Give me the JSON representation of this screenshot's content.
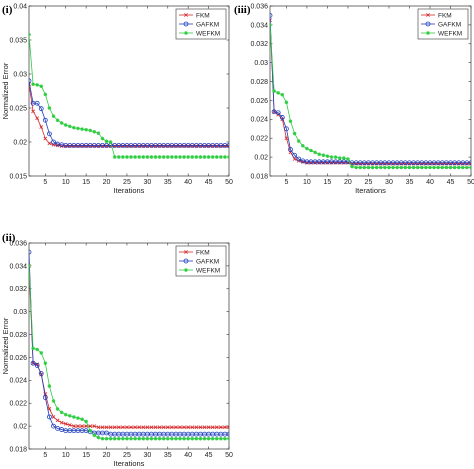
{
  "chart_data": [
    {
      "type": "line",
      "panel_label": "(i)",
      "xlabel": "Iterations",
      "ylabel": "Normalized Error",
      "xlim": [
        1,
        50
      ],
      "ylim": [
        0.015,
        0.04
      ],
      "xticks": [
        5,
        10,
        15,
        20,
        25,
        30,
        35,
        40,
        45,
        50
      ],
      "yticks": [
        0.015,
        0.02,
        0.025,
        0.03,
        0.035,
        0.04
      ],
      "ytick_labels": [
        "0.015",
        "0.02",
        "0.025",
        "0.03",
        "0.035",
        "0.04"
      ],
      "grid": false,
      "legend": "top-right",
      "series": [
        {
          "name": "FKM",
          "color": "#d62728",
          "marker": "x",
          "values": [
            0.0285,
            0.0245,
            0.0235,
            0.0222,
            0.0205,
            0.0198,
            0.0196,
            0.0195,
            0.0194,
            0.0194,
            0.0194,
            0.0194,
            0.0194,
            0.0194,
            0.0194,
            0.0194,
            0.0194,
            0.0194,
            0.0194,
            0.0194,
            0.0194,
            0.0194,
            0.0194,
            0.0194,
            0.0194,
            0.0194,
            0.0194,
            0.0194,
            0.0194,
            0.0194,
            0.0194,
            0.0194,
            0.0194,
            0.0194,
            0.0194,
            0.0194,
            0.0194,
            0.0194,
            0.0194,
            0.0194,
            0.0194,
            0.0194,
            0.0194,
            0.0194,
            0.0194,
            0.0194,
            0.0194,
            0.0194,
            0.0194,
            0.0194
          ]
        },
        {
          "name": "GAFKM",
          "color": "#1f3fbf",
          "marker": "o",
          "values": [
            0.029,
            0.0257,
            0.0257,
            0.0249,
            0.0232,
            0.0212,
            0.02,
            0.0197,
            0.0196,
            0.0195,
            0.0195,
            0.0195,
            0.0195,
            0.0195,
            0.0195,
            0.0195,
            0.0195,
            0.0195,
            0.0195,
            0.0195,
            0.0195,
            0.0195,
            0.0195,
            0.0195,
            0.0195,
            0.0195,
            0.0195,
            0.0195,
            0.0195,
            0.0195,
            0.0195,
            0.0195,
            0.0195,
            0.0195,
            0.0195,
            0.0195,
            0.0195,
            0.0195,
            0.0195,
            0.0195,
            0.0195,
            0.0195,
            0.0195,
            0.0195,
            0.0195,
            0.0195,
            0.0195,
            0.0195,
            0.0195,
            0.0195
          ]
        },
        {
          "name": "WEFKM",
          "color": "#2ecc40",
          "marker": "*",
          "values": [
            0.0358,
            0.0285,
            0.0284,
            0.0282,
            0.027,
            0.025,
            0.0238,
            0.0232,
            0.0228,
            0.0225,
            0.0223,
            0.0221,
            0.022,
            0.0219,
            0.0218,
            0.0217,
            0.0215,
            0.0213,
            0.0205,
            0.0201,
            0.02,
            0.0178,
            0.0178,
            0.0178,
            0.0178,
            0.0178,
            0.0178,
            0.0178,
            0.0178,
            0.0178,
            0.0178,
            0.0178,
            0.0178,
            0.0178,
            0.0178,
            0.0178,
            0.0178,
            0.0178,
            0.0178,
            0.0178,
            0.0178,
            0.0178,
            0.0178,
            0.0178,
            0.0178,
            0.0178,
            0.0178,
            0.0178,
            0.0178,
            0.0178
          ]
        }
      ]
    },
    {
      "type": "line",
      "panel_label": "(iii)",
      "xlabel": "Iterations",
      "ylabel": "",
      "xlim": [
        1,
        50
      ],
      "ylim": [
        0.018,
        0.036
      ],
      "xticks": [
        5,
        10,
        15,
        20,
        25,
        30,
        35,
        40,
        45,
        50
      ],
      "yticks": [
        0.018,
        0.02,
        0.022,
        0.024,
        0.026,
        0.028,
        0.03,
        0.032,
        0.034,
        0.036
      ],
      "ytick_labels": [
        "0.018",
        "0.02",
        "0.022",
        "0.024",
        "0.026",
        "0.028",
        "0.03",
        "0.032",
        "0.034",
        "0.036"
      ],
      "grid": false,
      "legend": "top-right",
      "series": [
        {
          "name": "FKM",
          "color": "#d62728",
          "marker": "x",
          "values": [
            0.0345,
            0.0248,
            0.0245,
            0.024,
            0.022,
            0.0205,
            0.0198,
            0.0196,
            0.0195,
            0.0194,
            0.0194,
            0.0194,
            0.0194,
            0.0194,
            0.0194,
            0.0194,
            0.0194,
            0.0194,
            0.0194,
            0.0194,
            0.0193,
            0.0193,
            0.0193,
            0.0193,
            0.0193,
            0.0193,
            0.0193,
            0.0193,
            0.0193,
            0.0193,
            0.0193,
            0.0193,
            0.0193,
            0.0193,
            0.0193,
            0.0193,
            0.0193,
            0.0193,
            0.0193,
            0.0193,
            0.0193,
            0.0193,
            0.0193,
            0.0193,
            0.0193,
            0.0193,
            0.0193,
            0.0193,
            0.0193,
            0.0193
          ]
        },
        {
          "name": "GAFKM",
          "color": "#1f3fbf",
          "marker": "o",
          "values": [
            0.035,
            0.0248,
            0.0247,
            0.0242,
            0.023,
            0.0208,
            0.0202,
            0.0198,
            0.0196,
            0.0195,
            0.0195,
            0.0195,
            0.0195,
            0.0195,
            0.0195,
            0.0195,
            0.0195,
            0.0195,
            0.0195,
            0.0195,
            0.0194,
            0.0194,
            0.0194,
            0.0194,
            0.0194,
            0.0194,
            0.0194,
            0.0194,
            0.0194,
            0.0194,
            0.0194,
            0.0194,
            0.0194,
            0.0194,
            0.0194,
            0.0194,
            0.0194,
            0.0194,
            0.0194,
            0.0194,
            0.0194,
            0.0194,
            0.0194,
            0.0194,
            0.0194,
            0.0194,
            0.0194,
            0.0194,
            0.0194,
            0.0194
          ]
        },
        {
          "name": "WEFKM",
          "color": "#2ecc40",
          "marker": "*",
          "values": [
            0.034,
            0.027,
            0.0268,
            0.0266,
            0.0258,
            0.0238,
            0.0225,
            0.0217,
            0.0212,
            0.0209,
            0.0207,
            0.0205,
            0.0203,
            0.0202,
            0.0201,
            0.02,
            0.02,
            0.0199,
            0.0199,
            0.0198,
            0.019,
            0.0189,
            0.0189,
            0.0189,
            0.0189,
            0.0189,
            0.0189,
            0.0189,
            0.0189,
            0.0189,
            0.0189,
            0.0189,
            0.0189,
            0.0189,
            0.0189,
            0.0189,
            0.0189,
            0.0189,
            0.0189,
            0.0189,
            0.0189,
            0.0189,
            0.0189,
            0.0189,
            0.0189,
            0.0189,
            0.0189,
            0.0189,
            0.0189,
            0.0189
          ]
        }
      ]
    },
    {
      "type": "line",
      "panel_label": "(ii)",
      "xlabel": "Iterations",
      "ylabel": "Normalized Error",
      "xlim": [
        1,
        50
      ],
      "ylim": [
        0.018,
        0.036
      ],
      "xticks": [
        5,
        10,
        15,
        20,
        25,
        30,
        35,
        40,
        45,
        50
      ],
      "yticks": [
        0.018,
        0.02,
        0.022,
        0.024,
        0.026,
        0.028,
        0.03,
        0.032,
        0.034,
        0.036
      ],
      "ytick_labels": [
        "0.018",
        "0.02",
        "0.022",
        "0.024",
        "0.026",
        "0.028",
        "0.03",
        "0.032",
        "0.034",
        "0.036"
      ],
      "grid": false,
      "legend": "top-right",
      "series": [
        {
          "name": "FKM",
          "color": "#d62728",
          "marker": "x",
          "values": [
            0.034,
            0.0255,
            0.0254,
            0.0245,
            0.0228,
            0.0215,
            0.0208,
            0.0205,
            0.0203,
            0.0202,
            0.0201,
            0.02,
            0.02,
            0.02,
            0.02,
            0.02,
            0.02,
            0.0199,
            0.0199,
            0.0199,
            0.0199,
            0.0199,
            0.0199,
            0.0199,
            0.0199,
            0.0199,
            0.0199,
            0.0199,
            0.0199,
            0.0199,
            0.0199,
            0.0199,
            0.0199,
            0.0199,
            0.0199,
            0.0199,
            0.0199,
            0.0199,
            0.0199,
            0.0199,
            0.0199,
            0.0199,
            0.0199,
            0.0199,
            0.0199,
            0.0199,
            0.0199,
            0.0199,
            0.0199,
            0.0199
          ]
        },
        {
          "name": "GAFKM",
          "color": "#1f3fbf",
          "marker": "o",
          "values": [
            0.0352,
            0.0255,
            0.0253,
            0.0246,
            0.0225,
            0.0208,
            0.02,
            0.0198,
            0.0197,
            0.0196,
            0.0196,
            0.0196,
            0.0196,
            0.0196,
            0.0196,
            0.0195,
            0.0194,
            0.0194,
            0.0194,
            0.0194,
            0.0193,
            0.0193,
            0.0193,
            0.0193,
            0.0193,
            0.0193,
            0.0193,
            0.0193,
            0.0193,
            0.0193,
            0.0193,
            0.0193,
            0.0193,
            0.0193,
            0.0193,
            0.0193,
            0.0193,
            0.0193,
            0.0193,
            0.0193,
            0.0193,
            0.0193,
            0.0193,
            0.0193,
            0.0193,
            0.0193,
            0.0193,
            0.0193,
            0.0193,
            0.0193
          ]
        },
        {
          "name": "WEFKM",
          "color": "#2ecc40",
          "marker": "*",
          "values": [
            0.034,
            0.0268,
            0.0267,
            0.0264,
            0.0255,
            0.0235,
            0.0222,
            0.0215,
            0.0212,
            0.021,
            0.0209,
            0.0208,
            0.0207,
            0.0206,
            0.0204,
            0.0196,
            0.0192,
            0.019,
            0.0189,
            0.0189,
            0.0189,
            0.0189,
            0.0189,
            0.0189,
            0.0189,
            0.0189,
            0.0189,
            0.0189,
            0.0189,
            0.0189,
            0.0189,
            0.0189,
            0.0189,
            0.0189,
            0.0189,
            0.0189,
            0.0189,
            0.0189,
            0.0189,
            0.0189,
            0.0189,
            0.0189,
            0.0189,
            0.0189,
            0.0189,
            0.0189,
            0.0189,
            0.0189,
            0.0189,
            0.0189
          ]
        }
      ]
    }
  ]
}
